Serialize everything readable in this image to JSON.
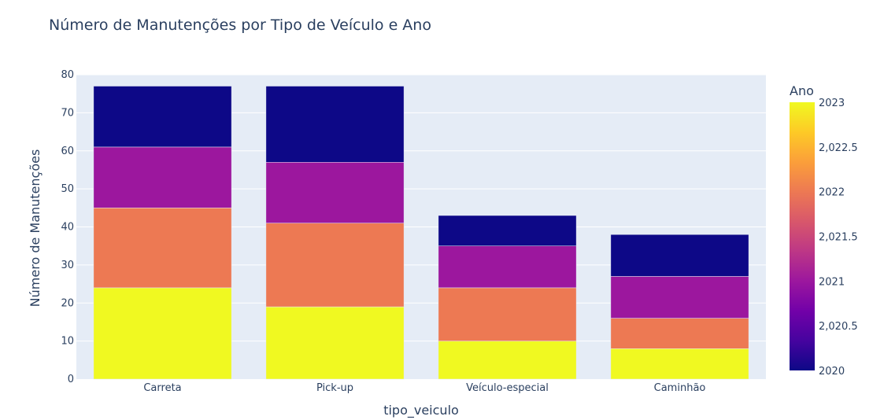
{
  "chart_data": {
    "type": "bar",
    "barmode": "stack",
    "title": "Número de Manutenções por Tipo de Veículo e Ano",
    "xlabel": "tipo_veiculo",
    "ylabel": "Número de Manutenções",
    "categories": [
      "Carreta",
      "Pick-up",
      "Veículo-especial",
      "Caminhão"
    ],
    "ylim": [
      0,
      80
    ],
    "yticks": [
      0,
      10,
      20,
      30,
      40,
      50,
      60,
      70,
      80
    ],
    "grid": true,
    "series": [
      {
        "year": 2023,
        "color": "#f0f921",
        "values": [
          24,
          19,
          10,
          8
        ]
      },
      {
        "year": 2022,
        "color": "#ed7953",
        "values": [
          21,
          22,
          14,
          8
        ]
      },
      {
        "year": 2021,
        "color": "#9c179e",
        "values": [
          16,
          16,
          11,
          11
        ]
      },
      {
        "year": 2020,
        "color": "#0d0887",
        "values": [
          16,
          20,
          8,
          11
        ]
      }
    ],
    "colorbar": {
      "title": "Ano",
      "range": [
        2020,
        2023
      ],
      "ticks": [
        "2023",
        "2,022.5",
        "2022",
        "2,021.5",
        "2021",
        "2,020.5",
        "2020"
      ],
      "tick_values": [
        2023,
        2022.5,
        2022,
        2021.5,
        2021,
        2020.5,
        2020
      ],
      "colors": [
        "#0d0887",
        "#46039f",
        "#7201a8",
        "#9c179e",
        "#bd3786",
        "#d8576b",
        "#ed7953",
        "#fb9f3a",
        "#fdca26",
        "#f0f921"
      ]
    }
  }
}
